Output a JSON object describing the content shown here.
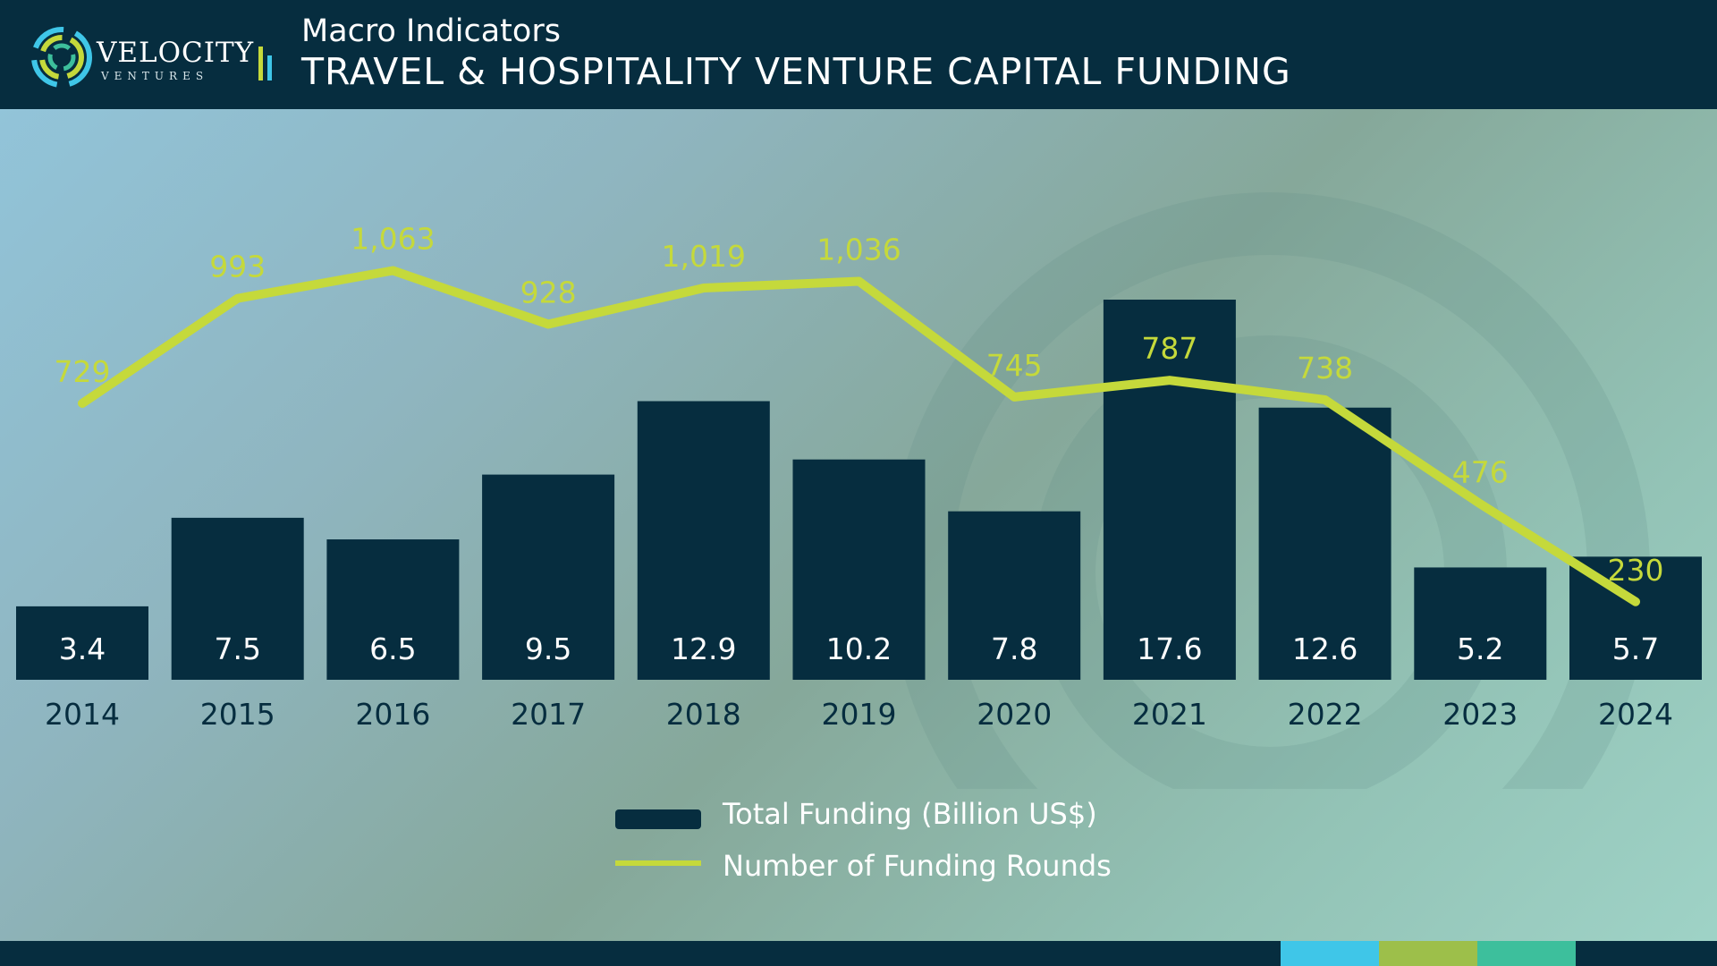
{
  "header": {
    "brand_name": "VELOCITY",
    "brand_sub": "VENTURES",
    "eyebrow": "Macro Indicators",
    "title": "TRAVEL & HOSPITALITY VENTURE CAPITAL FUNDING"
  },
  "colors": {
    "navy": "#062d3f",
    "line": "#c5d93b",
    "footer_blue": "#3fc6e8",
    "footer_green": "#9dbf4a",
    "footer_teal": "#3dbf9c"
  },
  "chart_data": {
    "type": "bar",
    "categories": [
      "2014",
      "2015",
      "2016",
      "2017",
      "2018",
      "2019",
      "2020",
      "2021",
      "2022",
      "2023",
      "2024"
    ],
    "series": [
      {
        "name": "Total Funding (Billion US$)",
        "type": "bar",
        "values": [
          3.4,
          7.5,
          6.5,
          9.5,
          12.9,
          10.2,
          7.8,
          17.6,
          12.6,
          5.2,
          5.7
        ]
      },
      {
        "name": "Number of Funding Rounds",
        "type": "line",
        "values": [
          729,
          993,
          1063,
          928,
          1019,
          1036,
          745,
          787,
          738,
          476,
          230
        ]
      }
    ],
    "bar_labels": [
      "3.4",
      "7.5",
      "6.5",
      "9.5",
      "12.9",
      "10.2",
      "7.8",
      "17.6",
      "12.6",
      "5.2",
      "5.7"
    ],
    "line_labels": [
      "729",
      "993",
      "1,063",
      "928",
      "1,019",
      "1,036",
      "745",
      "787",
      "738",
      "476",
      "230"
    ],
    "grid": false,
    "legend_position": "bottom-center"
  }
}
